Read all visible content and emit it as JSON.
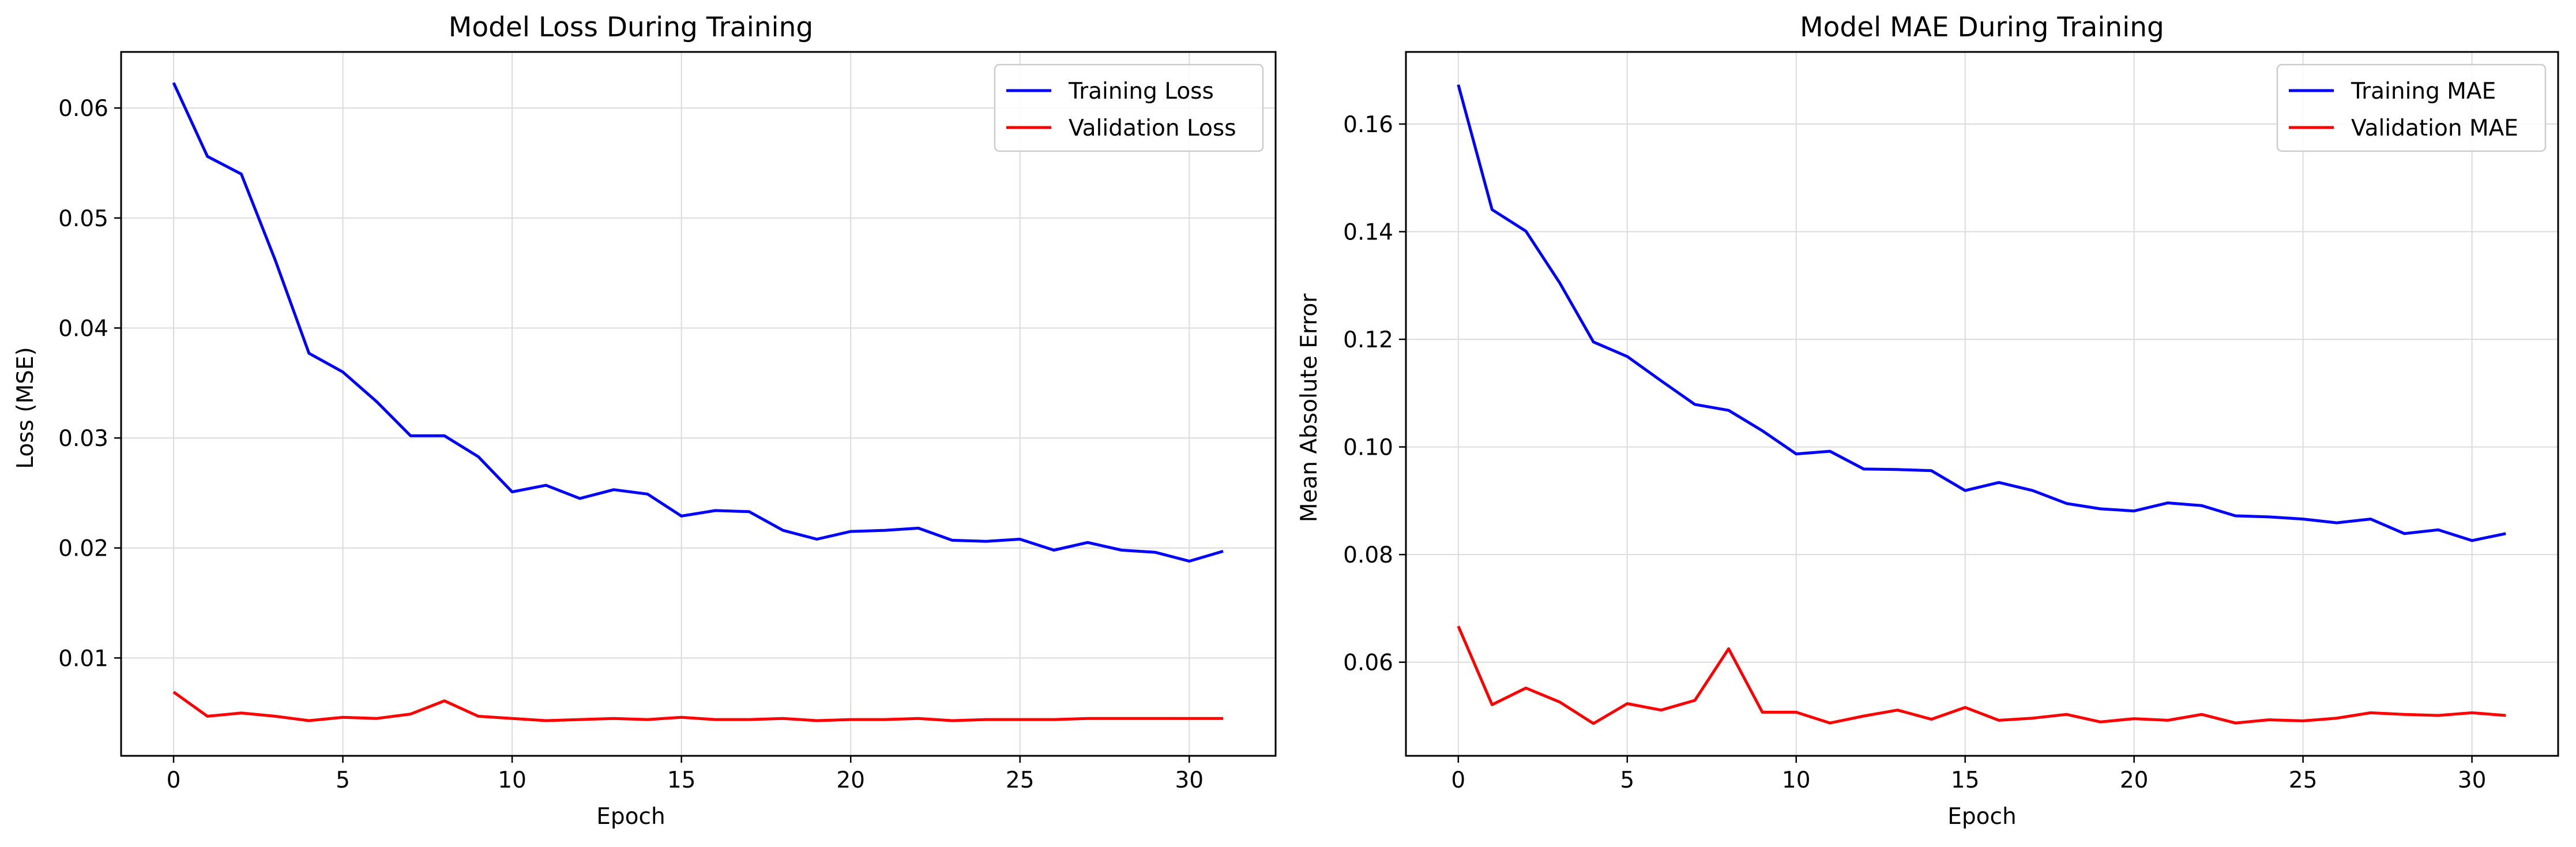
{
  "chart_data": [
    {
      "type": "line",
      "title": "Model Loss During Training",
      "xlabel": "Epoch",
      "ylabel": "Loss (MSE)",
      "xlim": [
        -1.55,
        32.55
      ],
      "ylim": [
        0.0011,
        0.0651
      ],
      "xticks": [
        0,
        5,
        10,
        15,
        20,
        25,
        30
      ],
      "xtick_labels": [
        "0",
        "5",
        "10",
        "15",
        "20",
        "25",
        "30"
      ],
      "yticks": [
        0.01,
        0.02,
        0.03,
        0.04,
        0.05,
        0.06
      ],
      "ytick_labels": [
        "0.01",
        "0.02",
        "0.03",
        "0.04",
        "0.05",
        "0.06"
      ],
      "grid": true,
      "legend_position": "top-right",
      "x": [
        0,
        1,
        2,
        3,
        4,
        5,
        6,
        7,
        8,
        9,
        10,
        11,
        12,
        13,
        14,
        15,
        16,
        17,
        18,
        19,
        20,
        21,
        22,
        23,
        24,
        25,
        26,
        27,
        28,
        29,
        30,
        31
      ],
      "series": [
        {
          "name": "Training Loss",
          "color": "#0000ff",
          "values": [
            0.0623,
            0.0556,
            0.054,
            0.0462,
            0.0377,
            0.036,
            0.0333,
            0.0302,
            0.0302,
            0.0283,
            0.0251,
            0.0257,
            0.0245,
            0.0253,
            0.0249,
            0.0229,
            0.0234,
            0.0233,
            0.0216,
            0.0208,
            0.0215,
            0.0216,
            0.0218,
            0.0207,
            0.0206,
            0.0208,
            0.0198,
            0.0205,
            0.0198,
            0.0196,
            0.0188,
            0.0197
          ]
        },
        {
          "name": "Validation Loss",
          "color": "#ff0000",
          "values": [
            0.0069,
            0.0047,
            0.005,
            0.0047,
            0.0043,
            0.0046,
            0.0045,
            0.0049,
            0.0061,
            0.0047,
            0.0045,
            0.0043,
            0.0044,
            0.0045,
            0.0044,
            0.0046,
            0.0044,
            0.0044,
            0.0045,
            0.0043,
            0.0044,
            0.0044,
            0.0045,
            0.0043,
            0.0044,
            0.0044,
            0.0044,
            0.0045,
            0.0045,
            0.0045,
            0.0045,
            0.0045
          ]
        }
      ]
    },
    {
      "type": "line",
      "title": "Model MAE During Training",
      "xlabel": "Epoch",
      "ylabel": "Mean Absolute Error",
      "xlim": [
        -1.55,
        32.55
      ],
      "ylim": [
        0.0426,
        0.1734
      ],
      "xticks": [
        0,
        5,
        10,
        15,
        20,
        25,
        30
      ],
      "xtick_labels": [
        "0",
        "5",
        "10",
        "15",
        "20",
        "25",
        "30"
      ],
      "yticks": [
        0.06,
        0.08,
        0.1,
        0.12,
        0.14,
        0.16
      ],
      "ytick_labels": [
        "0.06",
        "0.08",
        "0.10",
        "0.12",
        "0.14",
        "0.16"
      ],
      "grid": true,
      "legend_position": "top-right",
      "x": [
        0,
        1,
        2,
        3,
        4,
        5,
        6,
        7,
        8,
        9,
        10,
        11,
        12,
        13,
        14,
        15,
        16,
        17,
        18,
        19,
        20,
        21,
        22,
        23,
        24,
        25,
        26,
        27,
        28,
        29,
        30,
        31
      ],
      "series": [
        {
          "name": "Training MAE",
          "color": "#0000ff",
          "values": [
            0.1673,
            0.1441,
            0.1401,
            0.1305,
            0.1195,
            0.1168,
            0.1123,
            0.1079,
            0.1068,
            0.103,
            0.0987,
            0.0992,
            0.0959,
            0.0958,
            0.0956,
            0.0919,
            0.0934,
            0.0919,
            0.0895,
            0.0885,
            0.0881,
            0.0896,
            0.0891,
            0.0872,
            0.087,
            0.0866,
            0.0859,
            0.0866,
            0.0839,
            0.0846,
            0.0826,
            0.0839
          ]
        },
        {
          "name": "Validation MAE",
          "color": "#ff0000",
          "values": [
            0.0667,
            0.0521,
            0.0552,
            0.0526,
            0.0486,
            0.0523,
            0.0511,
            0.0529,
            0.0625,
            0.0507,
            0.0507,
            0.0487,
            0.05,
            0.0511,
            0.0494,
            0.0516,
            0.0492,
            0.0496,
            0.0503,
            0.0489,
            0.0495,
            0.0492,
            0.0503,
            0.0487,
            0.0493,
            0.0491,
            0.0496,
            0.0506,
            0.0503,
            0.0501,
            0.0506,
            0.0501
          ]
        }
      ]
    }
  ]
}
